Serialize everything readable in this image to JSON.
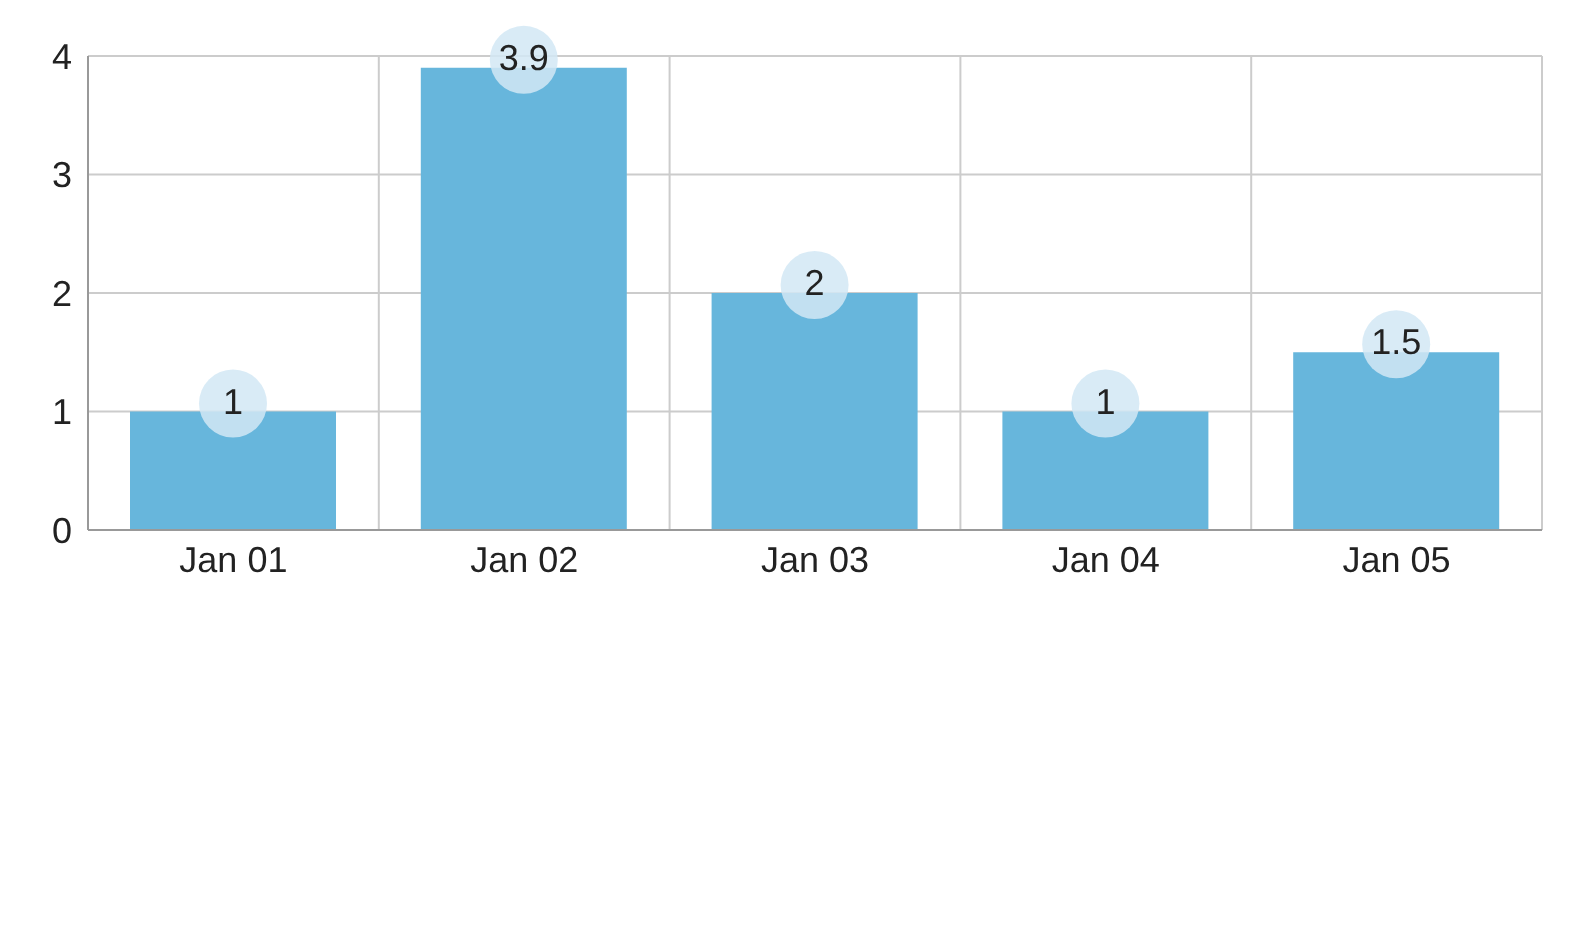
{
  "chart_data": {
    "type": "bar",
    "categories": [
      "Jan 01",
      "Jan 02",
      "Jan 03",
      "Jan 04",
      "Jan 05"
    ],
    "values": [
      1,
      3.9,
      2,
      1,
      1.5
    ],
    "color": "#67b6dc",
    "ylim": [
      0,
      4
    ],
    "yticks": [
      0,
      1,
      2,
      3,
      4
    ],
    "grid": true,
    "data_labels": true
  }
}
